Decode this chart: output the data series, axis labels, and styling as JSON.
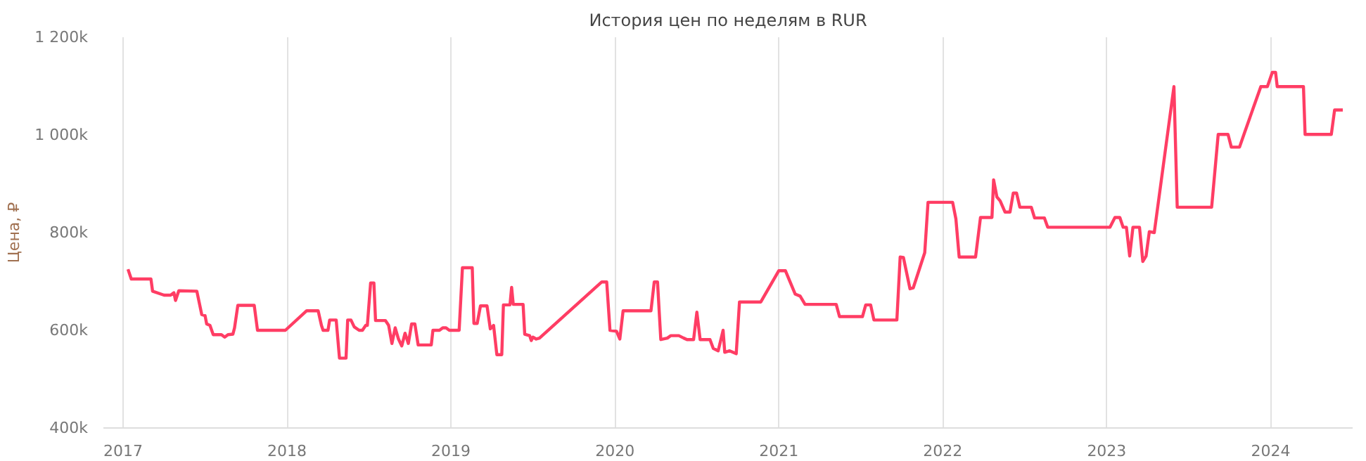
{
  "chart_data": {
    "type": "line",
    "title": "История цен по неделям в RUR",
    "ylabel": "Цена, ₽",
    "xlim": [
      2016.88,
      2024.5
    ],
    "xticks": [
      2017,
      2018,
      2019,
      2020,
      2021,
      2022,
      2023,
      2024
    ],
    "ylim": [
      400,
      1200
    ],
    "yticks": [
      {
        "value": 400,
        "label": "400k"
      },
      {
        "value": 600,
        "label": "600k"
      },
      {
        "value": 800,
        "label": "800k"
      },
      {
        "value": 1000,
        "label": "1 000k"
      },
      {
        "value": 1200,
        "label": "1 200k"
      }
    ],
    "grid": "x",
    "marker": "none",
    "line_style": "solid",
    "x": [
      2017.03,
      2017.05,
      2017.17,
      2017.18,
      2017.25,
      2017.29,
      2017.31,
      2017.32,
      2017.34,
      2017.45,
      2017.48,
      2017.5,
      2017.51,
      2017.53,
      2017.55,
      2017.6,
      2017.62,
      2017.64,
      2017.67,
      2017.68,
      2017.7,
      2017.8,
      2017.82,
      2017.99,
      2018.12,
      2018.19,
      2018.21,
      2018.22,
      2018.25,
      2018.26,
      2018.3,
      2018.32,
      2018.36,
      2018.37,
      2018.39,
      2018.41,
      2018.44,
      2018.46,
      2018.48,
      2018.49,
      2018.51,
      2018.53,
      2018.54,
      2018.6,
      2018.62,
      2018.64,
      2018.66,
      2018.68,
      2018.7,
      2018.72,
      2018.74,
      2018.76,
      2018.78,
      2018.8,
      2018.88,
      2018.89,
      2018.93,
      2018.95,
      2018.97,
      2018.99,
      2019.05,
      2019.07,
      2019.13,
      2019.14,
      2019.16,
      2019.18,
      2019.22,
      2019.24,
      2019.26,
      2019.28,
      2019.31,
      2019.32,
      2019.36,
      2019.37,
      2019.38,
      2019.44,
      2019.45,
      2019.48,
      2019.49,
      2019.5,
      2019.52,
      2019.54,
      2019.92,
      2019.95,
      2019.97,
      2020.01,
      2020.03,
      2020.05,
      2020.22,
      2020.24,
      2020.26,
      2020.28,
      2020.32,
      2020.34,
      2020.39,
      2020.42,
      2020.44,
      2020.48,
      2020.5,
      2020.52,
      2020.58,
      2020.6,
      2020.63,
      2020.66,
      2020.67,
      2020.7,
      2020.74,
      2020.76,
      2020.89,
      2021.0,
      2021.04,
      2021.1,
      2021.13,
      2021.16,
      2021.35,
      2021.37,
      2021.51,
      2021.53,
      2021.56,
      2021.58,
      2021.72,
      2021.74,
      2021.76,
      2021.8,
      2021.82,
      2021.89,
      2021.91,
      2022.06,
      2022.08,
      2022.1,
      2022.2,
      2022.23,
      2022.3,
      2022.31,
      2022.33,
      2022.35,
      2022.38,
      2022.41,
      2022.43,
      2022.45,
      2022.47,
      2022.54,
      2022.56,
      2022.62,
      2022.64,
      2023.02,
      2023.05,
      2023.08,
      2023.1,
      2023.12,
      2023.14,
      2023.16,
      2023.2,
      2023.22,
      2023.24,
      2023.26,
      2023.29,
      2023.41,
      2023.43,
      2023.64,
      2023.68,
      2023.74,
      2023.76,
      2023.81,
      2023.84,
      2023.94,
      2023.98,
      2024.01,
      2024.03,
      2024.04,
      2024.2,
      2024.21,
      2024.37,
      2024.39,
      2024.44
    ],
    "series": [
      {
        "color": "#ff3d64",
        "values": [
          725,
          705,
          705,
          680,
          672,
          672,
          677,
          661,
          681,
          680,
          632,
          630,
          613,
          610,
          591,
          591,
          586,
          591,
          592,
          605,
          651,
          651,
          600,
          600,
          640,
          640,
          610,
          600,
          600,
          621,
          621,
          543,
          543,
          621,
          621,
          607,
          600,
          600,
          610,
          610,
          697,
          697,
          620,
          620,
          610,
          573,
          605,
          582,
          568,
          594,
          573,
          613,
          613,
          570,
          570,
          600,
          600,
          605,
          605,
          600,
          600,
          728,
          728,
          614,
          614,
          650,
          650,
          603,
          610,
          550,
          550,
          652,
          652,
          688,
          653,
          653,
          592,
          589,
          579,
          586,
          582,
          584,
          699,
          699,
          600,
          598,
          582,
          640,
          640,
          699,
          699,
          581,
          584,
          589,
          589,
          584,
          581,
          581,
          637,
          581,
          581,
          563,
          558,
          600,
          555,
          558,
          552,
          658,
          658,
          722,
          722,
          674,
          670,
          653,
          653,
          628,
          628,
          652,
          652,
          621,
          621,
          750,
          749,
          685,
          687,
          759,
          862,
          862,
          828,
          750,
          750,
          831,
          831,
          908,
          873,
          865,
          842,
          842,
          881,
          881,
          852,
          852,
          830,
          830,
          811,
          811,
          831,
          831,
          811,
          811,
          752,
          811,
          811,
          741,
          752,
          802,
          800,
          1099,
          852,
          852,
          1001,
          1001,
          975,
          975,
          1004,
          1099,
          1099,
          1128,
          1128,
          1099,
          1099,
          1001,
          1001,
          1051,
          1051
        ]
      }
    ]
  }
}
